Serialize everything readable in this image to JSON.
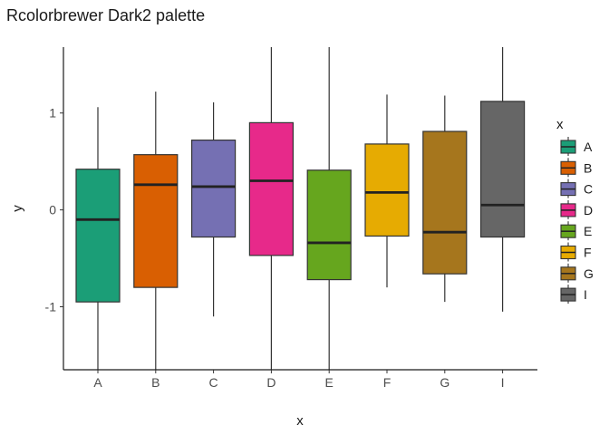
{
  "chart_data": {
    "type": "boxplot",
    "title": "Rcolorbrewer Dark2 palette",
    "xlabel": "x",
    "ylabel": "y",
    "ylim": [
      -1.65,
      1.68
    ],
    "yticks": [
      -1,
      0,
      1
    ],
    "ytick_labels": [
      "-1",
      "0",
      "1"
    ],
    "grid": false,
    "legend": {
      "title": "x",
      "position": "right"
    },
    "categories": [
      "A",
      "B",
      "C",
      "D",
      "E",
      "F",
      "G",
      "I"
    ],
    "boxes": [
      {
        "name": "A",
        "color": "#1B9E77",
        "min": -1.65,
        "q1": -0.95,
        "median": -0.1,
        "q3": 0.42,
        "max": 1.06
      },
      {
        "name": "B",
        "color": "#D95F02",
        "min": -1.65,
        "q1": -0.8,
        "median": 0.26,
        "q3": 0.57,
        "max": 1.22
      },
      {
        "name": "C",
        "color": "#7570B3",
        "min": -1.1,
        "q1": -0.28,
        "median": 0.24,
        "q3": 0.72,
        "max": 1.11
      },
      {
        "name": "D",
        "color": "#E7298A",
        "min": -1.65,
        "q1": -0.47,
        "median": 0.3,
        "q3": 0.9,
        "max": 1.68
      },
      {
        "name": "E",
        "color": "#66A61E",
        "min": -1.65,
        "q1": -0.72,
        "median": -0.34,
        "q3": 0.41,
        "max": 1.68
      },
      {
        "name": "F",
        "color": "#E6AB02",
        "min": -0.8,
        "q1": -0.27,
        "median": 0.18,
        "q3": 0.68,
        "max": 1.19
      },
      {
        "name": "G",
        "color": "#A6761D",
        "min": -0.95,
        "q1": -0.66,
        "median": -0.23,
        "q3": 0.81,
        "max": 1.18
      },
      {
        "name": "I",
        "color": "#666666",
        "min": -1.05,
        "q1": -0.28,
        "median": 0.05,
        "q3": 1.12,
        "max": 1.68
      }
    ]
  }
}
